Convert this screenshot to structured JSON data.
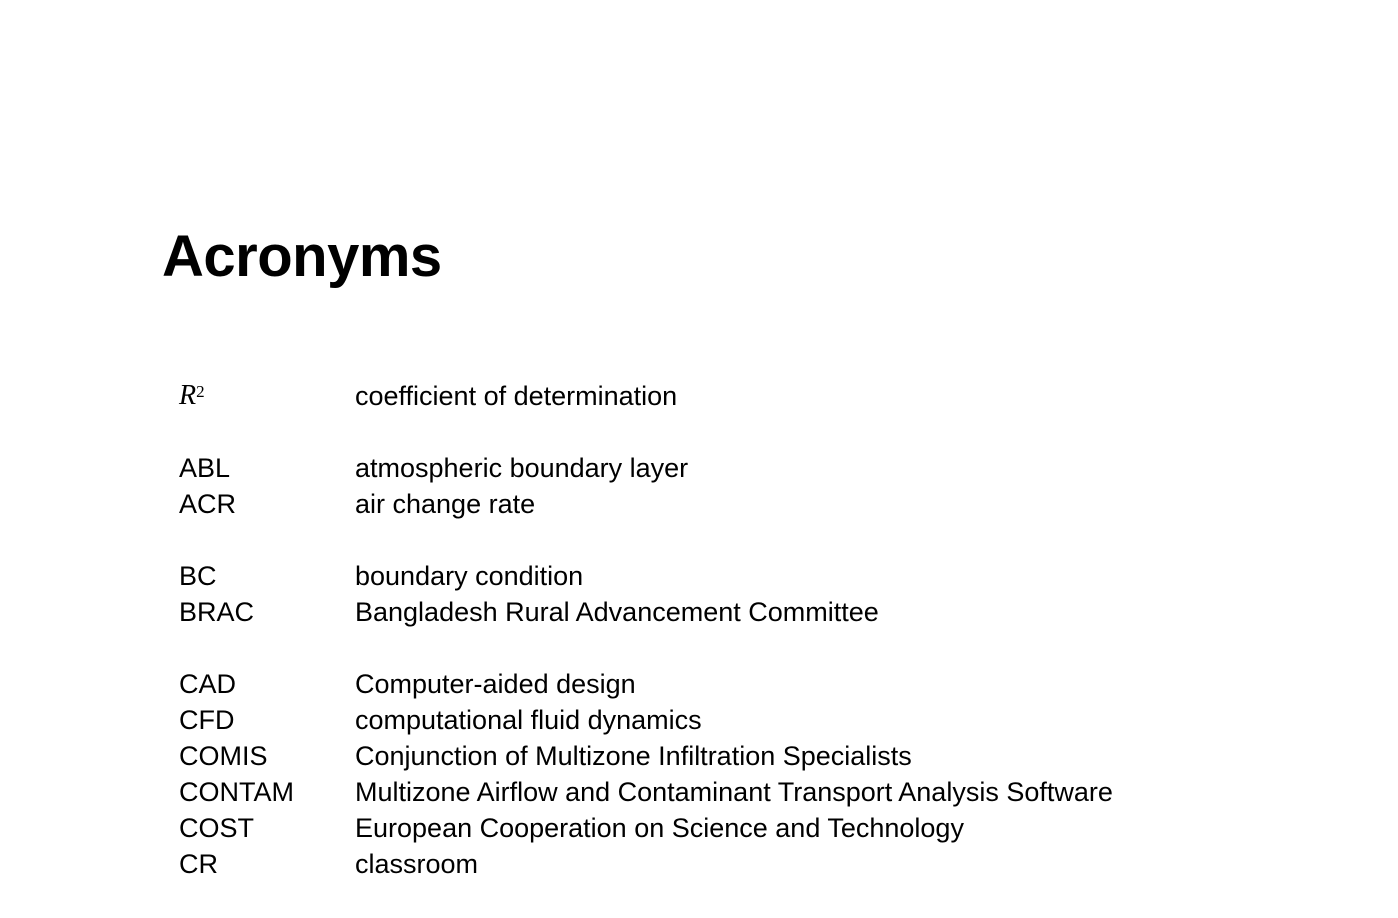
{
  "title": "Acronyms",
  "groups": [
    [
      {
        "abbr_base": "R",
        "abbr_sup": "2",
        "definition": "coefficient of determination"
      }
    ],
    [
      {
        "abbr": "ABL",
        "definition": "atmospheric boundary layer"
      },
      {
        "abbr": "ACR",
        "definition": "air change rate"
      }
    ],
    [
      {
        "abbr": "BC",
        "definition": "boundary condition"
      },
      {
        "abbr": "BRAC",
        "definition": "Bangladesh Rural Advancement Committee"
      }
    ],
    [
      {
        "abbr": "CAD",
        "definition": "Computer-aided design"
      },
      {
        "abbr": "CFD",
        "definition": "computational fluid dynamics"
      },
      {
        "abbr": "COMIS",
        "definition": "Conjunction of Multizone Infiltration Specialists"
      },
      {
        "abbr": "CONTAM",
        "definition": "Multizone Airflow and Contaminant Transport Analysis Software"
      },
      {
        "abbr": "COST",
        "definition": "European Cooperation on Science and Technology"
      },
      {
        "abbr": "CR",
        "definition": "classroom"
      }
    ]
  ]
}
